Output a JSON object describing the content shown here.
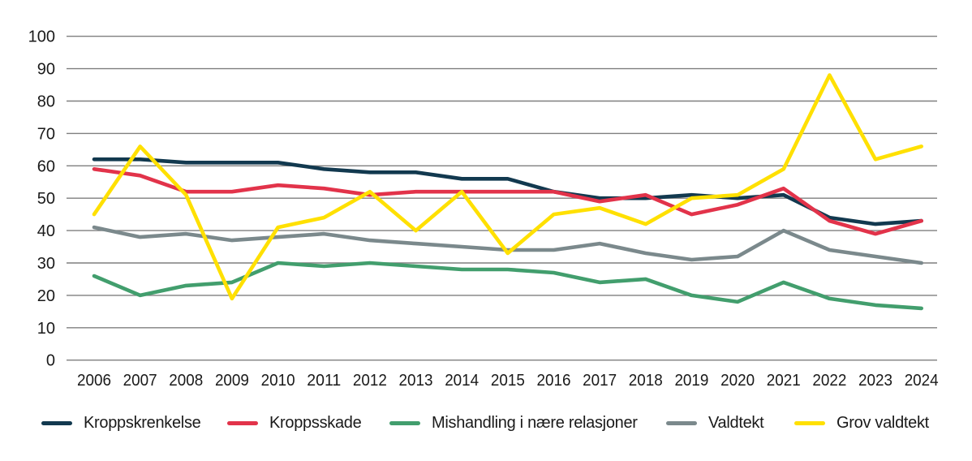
{
  "figure": {
    "background_color": "#ffffff",
    "axis_text_color": "#1a1a1a",
    "gridline_color": "#7f7f7f"
  },
  "chart_data": {
    "type": "line",
    "title": "",
    "xlabel": "",
    "ylabel": "",
    "x": [
      "2006",
      "2007",
      "2008",
      "2009",
      "2010",
      "2011",
      "2012",
      "2013",
      "2014",
      "2015",
      "2016",
      "2017",
      "2018",
      "2019",
      "2020",
      "2021",
      "2022",
      "2023",
      "2024"
    ],
    "ylim": [
      0,
      100
    ],
    "ytick_step": 10,
    "yticks": [
      0,
      10,
      20,
      30,
      40,
      50,
      60,
      70,
      80,
      90,
      100
    ],
    "grid": "horizontal-gridlines",
    "legend_position": "bottom",
    "series": [
      {
        "name": "Kroppskrenkelse",
        "color": "#12394f",
        "values": [
          62,
          62,
          61,
          61,
          61,
          59,
          58,
          58,
          56,
          56,
          52,
          50,
          50,
          51,
          50,
          51,
          44,
          42,
          43
        ]
      },
      {
        "name": "Kroppsskade",
        "color": "#e2334a",
        "values": [
          59,
          57,
          52,
          52,
          54,
          53,
          51,
          52,
          52,
          52,
          52,
          49,
          51,
          45,
          48,
          53,
          43,
          39,
          43
        ]
      },
      {
        "name": "Mishandling i nære relasjoner",
        "color": "#429e6d",
        "values": [
          26,
          20,
          23,
          24,
          30,
          29,
          30,
          29,
          28,
          28,
          27,
          24,
          25,
          20,
          18,
          24,
          19,
          17,
          16
        ]
      },
      {
        "name": "Valdtekt",
        "color": "#7b898c",
        "values": [
          41,
          38,
          39,
          37,
          38,
          39,
          37,
          36,
          35,
          34,
          34,
          36,
          33,
          31,
          32,
          40,
          34,
          32,
          30
        ]
      },
      {
        "name": "Grov valdtekt",
        "color": "#ffe000",
        "values": [
          45,
          66,
          51,
          19,
          41,
          44,
          52,
          40,
          52,
          33,
          45,
          47,
          42,
          50,
          51,
          59,
          88,
          62,
          66
        ]
      }
    ]
  }
}
